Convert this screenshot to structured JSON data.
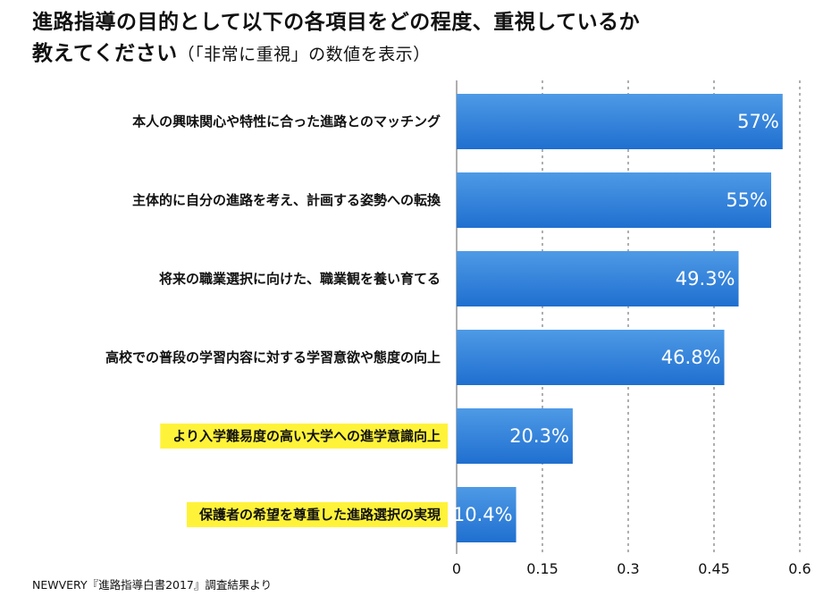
{
  "title": {
    "main_line1": "進路指導の目的として以下の各項目をどの程度、重視しているか",
    "main_line2": "教えてください",
    "note": "（「非常に重視」の数値を表示）"
  },
  "chart_data": {
    "type": "bar",
    "orientation": "horizontal",
    "categories": [
      "本人の興味関心や特性に合った進路とのマッチング",
      "主体的に自分の進路を考え、計画する姿勢への転換",
      "将来の職業選択に向けた、職業観を養い育てる",
      "高校での普段の学習内容に対する学習意欲や態度の向上",
      "より入学難易度の高い大学への進学意識向上",
      "保護者の希望を尊重した進路選択の実現"
    ],
    "values": [
      0.57,
      0.55,
      0.493,
      0.468,
      0.203,
      0.104
    ],
    "value_labels": [
      "57%",
      "55%",
      "49.3%",
      "46.8%",
      "20.3%",
      "10.4%"
    ],
    "highlighted": [
      false,
      false,
      false,
      false,
      true,
      true
    ],
    "xlim": [
      0,
      0.6
    ],
    "xticks": [
      "0",
      "0.15",
      "0.3",
      "0.45",
      "0.6"
    ],
    "xtick_values": [
      0,
      0.15,
      0.3,
      0.45,
      0.6
    ],
    "grid": "vertical-dashed",
    "colors": {
      "bar_top": "#4e9ae6",
      "bar_bottom": "#1f6fd0",
      "highlight": "#fff33a",
      "grid": "#7a7a7a"
    }
  },
  "source": "NEWVERY『進路指導白書2017』調査結果より"
}
